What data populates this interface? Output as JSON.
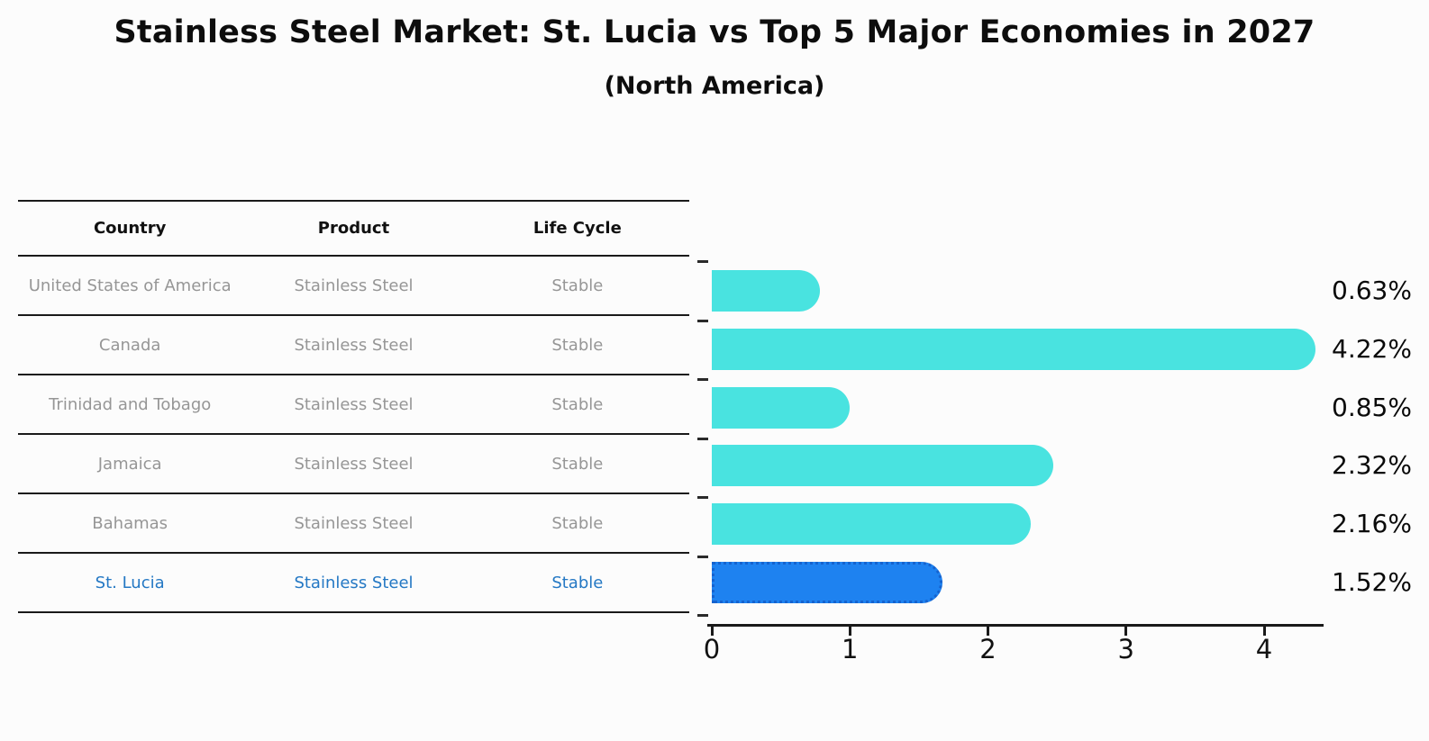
{
  "title": "Stainless Steel Market: St. Lucia vs Top 5 Major Economies in 2027",
  "subtitle": "(North America)",
  "table": {
    "headers": [
      "Country",
      "Product",
      "Life Cycle"
    ],
    "rows": [
      {
        "country": "United States of America",
        "product": "Stainless Steel",
        "life_cycle": "Stable",
        "highlight": false
      },
      {
        "country": "Canada",
        "product": "Stainless Steel",
        "life_cycle": "Stable",
        "highlight": false
      },
      {
        "country": "Trinidad and Tobago",
        "product": "Stainless Steel",
        "life_cycle": "Stable",
        "highlight": false
      },
      {
        "country": "Jamaica",
        "product": "Stainless Steel",
        "life_cycle": "Stable",
        "highlight": false
      },
      {
        "country": "Bahamas",
        "product": "Stainless Steel",
        "life_cycle": "Stable",
        "highlight": false
      },
      {
        "country": "St. Lucia",
        "product": "Stainless Steel",
        "life_cycle": "Stable",
        "highlight": true
      }
    ]
  },
  "chart_data": {
    "type": "bar",
    "orientation": "horizontal",
    "title": "Stainless Steel Market: St. Lucia vs Top 5 Major Economies in 2027 (North America)",
    "categories": [
      "United States of America",
      "Canada",
      "Trinidad and Tobago",
      "Jamaica",
      "Bahamas",
      "St. Lucia"
    ],
    "values": [
      0.63,
      4.22,
      0.85,
      2.32,
      2.16,
      1.52
    ],
    "value_labels": [
      "0.63%",
      "4.22%",
      "0.85%",
      "2.32%",
      "2.16%",
      "1.52%"
    ],
    "x_ticks": [
      "0",
      "1",
      "2",
      "3",
      "4"
    ],
    "xlim": [
      0,
      4.43
    ],
    "xlabel": "",
    "ylabel": "",
    "grid": false,
    "legend": false,
    "highlight_index": 5,
    "colors": {
      "bar": "#49E3E0",
      "highlight_bar": "#1E82F0",
      "highlight_border": "#1563CF",
      "row_text": "#969696",
      "highlight_text": "#2478C4"
    }
  }
}
